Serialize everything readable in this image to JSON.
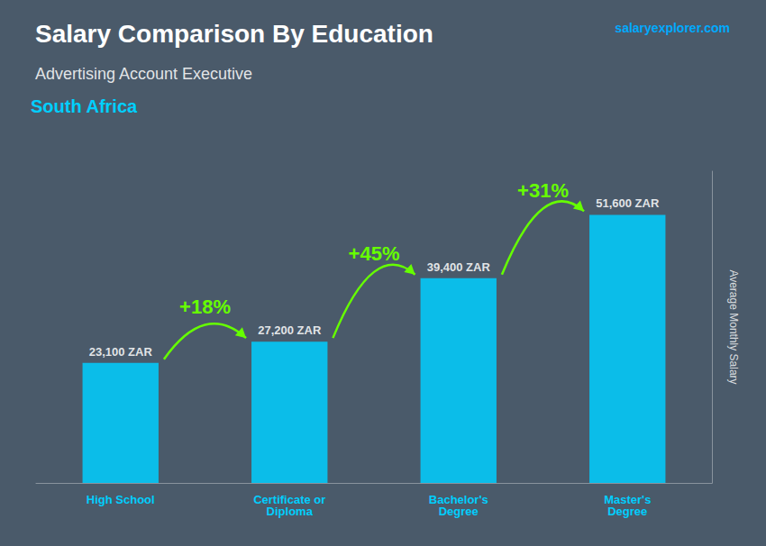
{
  "chart_data": {
    "type": "bar",
    "title": "Salary Comparison By Education",
    "subtitle": "Advertising Account Executive",
    "ylabel": "Average Monthly Salary",
    "categories": [
      "High School",
      "Certificate or\nDiploma",
      "Bachelor's\nDegree",
      "Master's\nDegree"
    ],
    "values": [
      23100,
      27200,
      39400,
      51600
    ],
    "value_labels": [
      "23,100 ZAR",
      "27,200 ZAR",
      "39,400 ZAR",
      "51,600 ZAR"
    ],
    "data_labels": true,
    "color": "#00CFFF",
    "ylim": [
      0,
      60000
    ],
    "tick_labels": "x",
    "grid": false,
    "annotations": [
      {
        "text": "South Africa"
      },
      {
        "text": "salaryexplorer.com"
      },
      {
        "text": "+18%",
        "from": "High School",
        "to": "Certificate or\nDiploma"
      },
      {
        "text": "+45%",
        "from": "Certificate or\nDiploma",
        "to": "Bachelor's\nDegree"
      },
      {
        "text": "+31%",
        "from": "Bachelor's\nDegree",
        "to": "Master's\nDegree"
      }
    ]
  }
}
